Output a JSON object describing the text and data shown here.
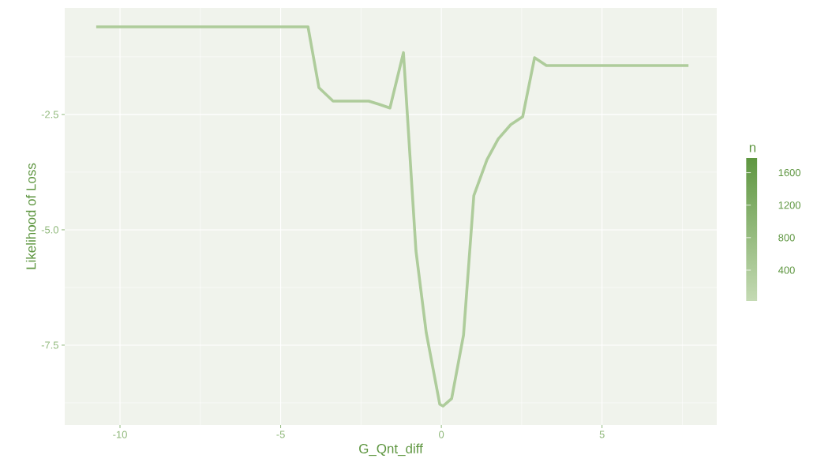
{
  "chart_data": {
    "type": "line",
    "xlabel": "G_Qnt_diff",
    "ylabel": "Likelihood of Loss",
    "clabel": "n",
    "xlim": [
      -11.72,
      8.57
    ],
    "ylim": [
      -9.23,
      -0.19
    ],
    "xticks": [
      -10,
      -5,
      0,
      5
    ],
    "yticks": [
      {
        "value": -2.5,
        "label": "-2.5"
      },
      {
        "value": -5,
        "label": "-5.0"
      },
      {
        "value": -7.5,
        "label": "-7.5"
      }
    ],
    "clim": [
      20,
      1780
    ],
    "cticks": [
      400,
      800,
      1200,
      1600
    ],
    "grid": true,
    "line_style": "solid",
    "marker": "none",
    "color": "#aecc9b",
    "x": [
      -10.74,
      -9.5,
      -8.5,
      -7.4,
      -6.8,
      -6.3,
      -5.85,
      -5.5,
      -4.15,
      -3.81,
      -3.37,
      -2.26,
      -1.94,
      -1.6,
      -1.18,
      -0.79,
      -0.47,
      -0.05,
      0.05,
      0.32,
      0.69,
      1.01,
      1.42,
      1.77,
      2.16,
      2.53,
      2.9,
      3.27,
      5.0,
      5.6,
      6.0,
      7.3,
      7.69
    ],
    "values": [
      -0.6,
      -0.6,
      -0.6,
      -0.6,
      -0.6,
      -0.6,
      -0.6,
      -0.6,
      -0.6,
      -1.92,
      -2.21,
      -2.21,
      -2.28,
      -2.36,
      -1.16,
      -5.46,
      -7.23,
      -8.78,
      -8.82,
      -8.66,
      -7.28,
      -4.26,
      -3.48,
      -3.03,
      -2.72,
      -2.55,
      -1.27,
      -1.44,
      -1.44,
      -1.44,
      -1.44,
      -1.44,
      -1.44
    ]
  }
}
